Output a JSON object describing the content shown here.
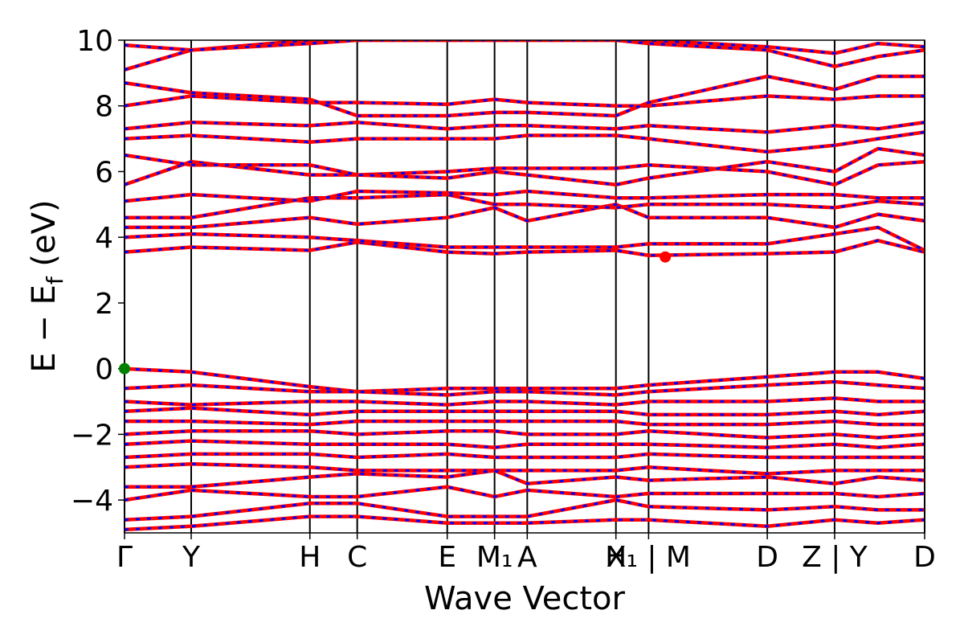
{
  "chart_data": {
    "type": "line",
    "xlabel": "Wave Vector",
    "ylabel": [
      "E − E",
      "f",
      " (eV)"
    ],
    "color": "#ff0000",
    "dash_color": "#0000ff",
    "xlim": [
      0,
      12
    ],
    "ylim": [
      -5,
      10
    ],
    "yticks": [
      {
        "value": -4,
        "label": "−4"
      },
      {
        "value": -2,
        "label": "−2"
      },
      0,
      2,
      4,
      6,
      8,
      10
    ],
    "xticks": [
      {
        "value": 0,
        "label": "Γ"
      },
      {
        "value": 1,
        "label": "Y"
      },
      {
        "value": 2.78,
        "label": "H"
      },
      {
        "value": 3.49,
        "label": "C"
      },
      {
        "value": 4.84,
        "label": "E"
      },
      {
        "value": 5.55,
        "label": "M₁"
      },
      {
        "value": 6.04,
        "label": "A"
      },
      {
        "value": 7.37,
        "label": "H"
      },
      {
        "value": 7.86,
        "label": "X₁ | M"
      },
      {
        "value": 9.64,
        "label": "D"
      },
      {
        "value": 10.65,
        "label": "Z | Y"
      },
      {
        "value": 12,
        "label": "D"
      }
    ],
    "grid": true,
    "x": [
      0,
      1,
      2.78,
      3.49,
      4.84,
      5.55,
      6.04,
      7.37,
      7.86,
      9.64,
      10.65,
      11.3,
      12
    ],
    "series": [
      {
        "values": [
          3.55,
          3.7,
          3.6,
          3.85,
          3.55,
          3.5,
          3.55,
          3.6,
          3.45,
          3.5,
          3.55,
          3.9,
          3.55
        ]
      },
      {
        "values": [
          4.0,
          4.1,
          4.0,
          3.9,
          3.7,
          3.7,
          3.7,
          3.7,
          3.8,
          3.8,
          4.1,
          4.3,
          3.6
        ]
      },
      {
        "values": [
          4.3,
          4.3,
          4.6,
          4.4,
          4.6,
          4.9,
          4.5,
          5.0,
          4.6,
          4.6,
          4.3,
          4.7,
          4.5
        ]
      },
      {
        "values": [
          4.6,
          4.6,
          5.2,
          5.2,
          5.3,
          5.0,
          5.0,
          4.9,
          5.0,
          5.0,
          4.9,
          5.1,
          5.0
        ]
      },
      {
        "values": [
          5.1,
          5.3,
          5.1,
          5.4,
          5.35,
          5.3,
          5.4,
          5.2,
          5.2,
          5.3,
          5.3,
          5.2,
          5.2
        ]
      },
      {
        "values": [
          5.6,
          6.3,
          5.9,
          5.9,
          6.0,
          6.1,
          6.1,
          6.1,
          6.2,
          6.0,
          5.6,
          6.2,
          6.3
        ]
      },
      {
        "values": [
          6.5,
          6.2,
          6.2,
          5.9,
          5.8,
          6.0,
          5.9,
          5.6,
          5.8,
          6.3,
          6.0,
          6.7,
          6.5
        ]
      },
      {
        "values": [
          7.0,
          7.1,
          6.9,
          7.0,
          7.0,
          7.0,
          7.1,
          7.1,
          7.0,
          6.6,
          6.8,
          7.0,
          7.2
        ]
      },
      {
        "values": [
          7.3,
          7.5,
          7.4,
          7.5,
          7.3,
          7.4,
          7.4,
          7.3,
          7.4,
          7.2,
          7.4,
          7.3,
          7.5
        ]
      },
      {
        "values": [
          8.0,
          8.3,
          8.1,
          8.1,
          8.05,
          8.2,
          8.1,
          8.0,
          8.0,
          8.3,
          8.2,
          8.3,
          8.3
        ]
      },
      {
        "values": [
          8.7,
          8.4,
          8.2,
          7.7,
          7.7,
          7.8,
          7.8,
          7.7,
          8.1,
          8.9,
          8.5,
          8.9,
          8.9
        ]
      },
      {
        "values": [
          9.85,
          9.7,
          10.0,
          10.0,
          10.0,
          10.0,
          10.0,
          10.0,
          10.0,
          9.8,
          9.6,
          9.9,
          9.8
        ]
      },
      {
        "values": [
          9.1,
          9.7,
          9.9,
          10.0,
          10.0,
          10.0,
          10.0,
          10.0,
          9.9,
          9.7,
          9.2,
          9.5,
          9.7
        ]
      },
      {
        "values": [
          0,
          -0.1,
          -0.55,
          -0.7,
          -0.6,
          -0.6,
          -0.6,
          -0.6,
          -0.5,
          -0.25,
          -0.1,
          -0.1,
          -0.3
        ]
      },
      {
        "values": [
          -0.6,
          -0.5,
          -0.7,
          -0.7,
          -0.8,
          -0.7,
          -0.7,
          -0.8,
          -0.7,
          -0.5,
          -0.4,
          -0.5,
          -0.6
        ]
      },
      {
        "values": [
          -1.0,
          -1.1,
          -1.0,
          -1.0,
          -1.1,
          -1.0,
          -1.0,
          -1.1,
          -1.0,
          -1.0,
          -0.9,
          -1.0,
          -1.0
        ]
      },
      {
        "values": [
          -1.3,
          -1.2,
          -1.4,
          -1.3,
          -1.3,
          -1.3,
          -1.3,
          -1.3,
          -1.4,
          -1.4,
          -1.3,
          -1.4,
          -1.3
        ]
      },
      {
        "values": [
          -1.6,
          -1.6,
          -1.7,
          -1.6,
          -1.6,
          -1.6,
          -1.6,
          -1.6,
          -1.7,
          -1.7,
          -1.6,
          -1.7,
          -1.7
        ]
      },
      {
        "values": [
          -2.0,
          -1.9,
          -1.9,
          -2.0,
          -1.9,
          -1.9,
          -2.0,
          -2.0,
          -1.9,
          -2.1,
          -2.0,
          -2.1,
          -2.0
        ]
      },
      {
        "values": [
          -2.3,
          -2.2,
          -2.3,
          -2.3,
          -2.3,
          -2.4,
          -2.3,
          -2.3,
          -2.3,
          -2.4,
          -2.3,
          -2.4,
          -2.3
        ]
      },
      {
        "values": [
          -2.7,
          -2.6,
          -2.6,
          -2.7,
          -2.6,
          -2.7,
          -2.7,
          -2.7,
          -2.6,
          -2.7,
          -2.7,
          -2.7,
          -2.7
        ]
      },
      {
        "values": [
          -3.0,
          -2.9,
          -3.0,
          -3.1,
          -3.1,
          -3.1,
          -3.1,
          -3.1,
          -3.0,
          -3.2,
          -3.1,
          -3.1,
          -3.1
        ]
      },
      {
        "values": [
          -3.6,
          -3.6,
          -3.3,
          -3.2,
          -3.3,
          -3.1,
          -3.5,
          -3.3,
          -3.4,
          -3.3,
          -3.5,
          -3.3,
          -3.4
        ]
      },
      {
        "values": [
          -4.0,
          -3.7,
          -3.9,
          -3.9,
          -3.6,
          -3.9,
          -3.7,
          -3.9,
          -3.8,
          -3.8,
          -3.8,
          -3.9,
          -3.8
        ]
      },
      {
        "values": [
          -4.6,
          -4.5,
          -4.1,
          -4.1,
          -4.5,
          -4.5,
          -4.5,
          -4.0,
          -4.2,
          -4.3,
          -4.2,
          -4.3,
          -4.3
        ]
      },
      {
        "values": [
          -4.9,
          -4.8,
          -4.5,
          -4.5,
          -4.7,
          -4.7,
          -4.7,
          -4.6,
          -4.6,
          -4.8,
          -4.6,
          -4.7,
          -4.6
        ]
      }
    ],
    "points": [
      {
        "x": 0,
        "y": 0,
        "color": "#008000"
      },
      {
        "x": 8.11,
        "y": 3.4,
        "color": "#ff0000"
      }
    ]
  }
}
